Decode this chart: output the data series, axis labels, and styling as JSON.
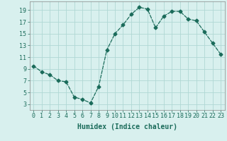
{
  "x": [
    0,
    1,
    2,
    3,
    4,
    5,
    6,
    7,
    8,
    9,
    10,
    11,
    12,
    13,
    14,
    15,
    16,
    17,
    18,
    19,
    20,
    21,
    22,
    23
  ],
  "y": [
    9.5,
    8.5,
    8.0,
    7.0,
    6.8,
    4.2,
    3.8,
    3.2,
    6.0,
    12.2,
    15.0,
    16.5,
    18.3,
    19.5,
    19.2,
    16.0,
    18.0,
    18.8,
    18.8,
    17.5,
    17.2,
    15.3,
    13.4,
    11.5
  ],
  "line_color": "#1a6b5a",
  "marker": "D",
  "marker_size": 2.5,
  "bg_color": "#d8f0ee",
  "grid_color": "#b0d8d4",
  "xlabel": "Humidex (Indice chaleur)",
  "xlim": [
    -0.5,
    23.5
  ],
  "ylim": [
    2,
    20.5
  ],
  "yticks": [
    3,
    5,
    7,
    9,
    11,
    13,
    15,
    17,
    19
  ],
  "xticks": [
    0,
    1,
    2,
    3,
    4,
    5,
    6,
    7,
    8,
    9,
    10,
    11,
    12,
    13,
    14,
    15,
    16,
    17,
    18,
    19,
    20,
    21,
    22,
    23
  ],
  "xtick_labels": [
    "0",
    "1",
    "2",
    "3",
    "4",
    "5",
    "6",
    "7",
    "8",
    "9",
    "10",
    "11",
    "12",
    "13",
    "14",
    "15",
    "16",
    "17",
    "18",
    "19",
    "20",
    "21",
    "22",
    "23"
  ],
  "tick_fontsize": 6.0,
  "xlabel_fontsize": 7.0,
  "linewidth": 0.9
}
